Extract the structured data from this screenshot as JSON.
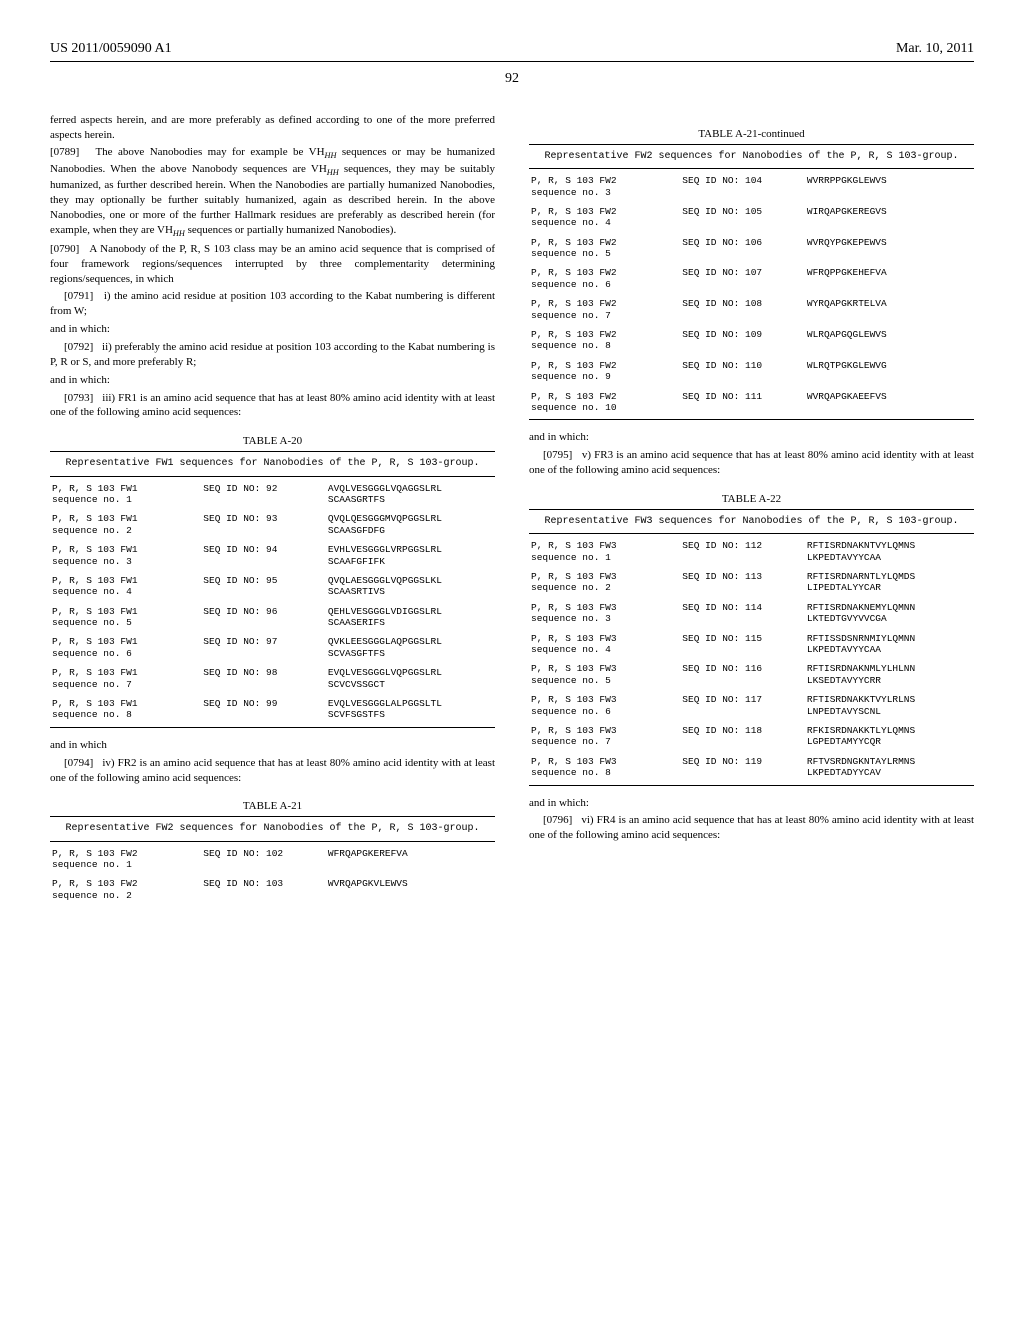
{
  "header": {
    "docnum": "US 2011/0059090 A1",
    "date": "Mar. 10, 2011"
  },
  "pagenum": "92",
  "left": {
    "p0": "ferred aspects herein, and are more preferably as defined according to one of the more preferred aspects herein.",
    "p0789_id": "[0789]",
    "p0789": "The above Nanobodies may for example be V",
    "p0789b": " sequences or may be humanized Nanobodies. When the above Nanobody sequences are V",
    "p0789c": " sequences, they may be suitably humanized, as further described herein. When the Nanobodies are partially humanized Nanobodies, they may optionally be further suitably humanized, again as described herein. In the above Nanobodies, one or more of the further Hallmark residues are preferably as described herein (for example, when they are V",
    "p0789d": " sequences or partially humanized Nanobodies).",
    "p0790_id": "[0790]",
    "p0790": "A Nanobody of the P, R, S 103 class may be an amino acid sequence that is comprised of four framework regions/sequences interrupted by three complementarity determining regions/sequences, in which",
    "p0791_id": "[0791]",
    "p0791": "i) the amino acid residue at position 103 according to the Kabat numbering is different from W;",
    "andwhich1": "and in which:",
    "p0792_id": "[0792]",
    "p0792": "ii) preferably the amino acid residue at position 103 according to the Kabat numbering is P, R or S, and more preferably R;",
    "andwhich2": "and in which:",
    "p0793_id": "[0793]",
    "p0793": "iii) FR1 is an amino acid sequence that has at least 80% amino acid identity with at least one of the following amino acid sequences:",
    "tA20_caption": "TABLE A-20",
    "tA20_sub": "Representative FW1 sequences for Nanobodies of the P, R, S 103-group.",
    "tA20_rows": [
      {
        "n1": "P, R, S 103 FW1",
        "n2": "sequence no. 1",
        "s": "SEQ ID NO: 92",
        "v1": "AVQLVESGGGLVQAGGSLRL",
        "v2": "SCAASGRTFS"
      },
      {
        "n1": "P, R, S 103 FW1",
        "n2": "sequence no. 2",
        "s": "SEQ ID NO: 93",
        "v1": "QVQLQESGGGMVQPGGSLRL",
        "v2": "SCAASGFDFG"
      },
      {
        "n1": "P, R, S 103 FW1",
        "n2": "sequence no. 3",
        "s": "SEQ ID NO: 94",
        "v1": "EVHLVESGGGLVRPGGSLRL",
        "v2": "SCAAFGFIFK"
      },
      {
        "n1": "P, R, S 103 FW1",
        "n2": "sequence no. 4",
        "s": "SEQ ID NO: 95",
        "v1": "QVQLAESGGGLVQPGGSLKL",
        "v2": "SCAASRTIVS"
      },
      {
        "n1": "P, R, S 103 FW1",
        "n2": "sequence no. 5",
        "s": "SEQ ID NO: 96",
        "v1": "QEHLVESGGGLVDIGGSLRL",
        "v2": "SCAASERIFS"
      },
      {
        "n1": "P, R, S 103 FW1",
        "n2": "sequence no. 6",
        "s": "SEQ ID NO: 97",
        "v1": "QVKLEESGGGLAQPGGSLRL",
        "v2": "SCVASGFTFS"
      },
      {
        "n1": "P, R, S 103 FW1",
        "n2": "sequence no. 7",
        "s": "SEQ ID NO: 98",
        "v1": "EVQLVESGGGLVQPGGSLRL",
        "v2": "SCVCVSSGCT"
      },
      {
        "n1": "P, R, S 103 FW1",
        "n2": "sequence no. 8",
        "s": "SEQ ID NO: 99",
        "v1": "EVQLVESGGGLALPGGSLTL",
        "v2": "SCVFSGSTFS"
      }
    ],
    "andwhich3": "and in which",
    "p0794_id": "[0794]",
    "p0794": "iv) FR2 is an amino acid sequence that has at least 80% amino acid identity with at least one of the following amino acid sequences:",
    "tA21_caption": "TABLE A-21",
    "tA21_sub": "Representative FW2 sequences for Nanobodies of the P, R, S 103-group.",
    "tA21_rows": [
      {
        "n1": "P, R, S 103 FW2",
        "n2": "sequence no. 1",
        "s": "SEQ ID NO: 102",
        "v1": "WFRQAPGKEREFVA",
        "v2": ""
      },
      {
        "n1": "P, R, S 103 FW2",
        "n2": "sequence no. 2",
        "s": "SEQ ID NO: 103",
        "v1": "WVRQAPGKVLEWVS",
        "v2": ""
      }
    ]
  },
  "right": {
    "tA21c_caption": "TABLE A-21-continued",
    "tA21c_sub": "Representative FW2 sequences for Nanobodies of the P, R, S 103-group.",
    "tA21c_rows": [
      {
        "n1": "P, R, S 103 FW2",
        "n2": "sequence no. 3",
        "s": "SEQ ID NO: 104",
        "v1": "WVRRPPGKGLEWVS",
        "v2": ""
      },
      {
        "n1": "P, R, S 103 FW2",
        "n2": "sequence no. 4",
        "s": "SEQ ID NO: 105",
        "v1": "WIRQAPGKEREGVS",
        "v2": ""
      },
      {
        "n1": "P, R, S 103 FW2",
        "n2": "sequence no. 5",
        "s": "SEQ ID NO: 106",
        "v1": "WVRQYPGKEPEWVS",
        "v2": ""
      },
      {
        "n1": "P, R, S 103 FW2",
        "n2": "sequence no. 6",
        "s": "SEQ ID NO: 107",
        "v1": "WFRQPPGKEHEFVA",
        "v2": ""
      },
      {
        "n1": "P, R, S 103 FW2",
        "n2": "sequence no. 7",
        "s": "SEQ ID NO: 108",
        "v1": "WYRQAPGKRTELVA",
        "v2": ""
      },
      {
        "n1": "P, R, S 103 FW2",
        "n2": "sequence no. 8",
        "s": "SEQ ID NO: 109",
        "v1": "WLRQAPGQGLEWVS",
        "v2": ""
      },
      {
        "n1": "P, R, S 103 FW2",
        "n2": "sequence no. 9",
        "s": "SEQ ID NO: 110",
        "v1": "WLRQTPGKGLEWVG",
        "v2": ""
      },
      {
        "n1": "P, R, S 103 FW2",
        "n2": "sequence no. 10",
        "s": "SEQ ID NO: 111",
        "v1": "WVRQAPGKAEEFVS",
        "v2": ""
      }
    ],
    "andwhich4": "and in which:",
    "p0795_id": "[0795]",
    "p0795": "v) FR3 is an amino acid sequence that has at least 80% amino acid identity with at least one of the following amino acid sequences:",
    "tA22_caption": "TABLE A-22",
    "tA22_sub": "Representative FW3 sequences for Nanobodies of the P, R, S 103-group.",
    "tA22_rows": [
      {
        "n1": "P, R, S 103 FW3",
        "n2": "sequence no. 1",
        "s": "SEQ ID NO: 112",
        "v1": "RFTISRDNAKNTVYLQMNS",
        "v2": "LKPEDTAVYYCAA"
      },
      {
        "n1": "P, R, S 103 FW3",
        "n2": "sequence no. 2",
        "s": "SEQ ID NO: 113",
        "v1": "RFTISRDNARNTLYLQMDS",
        "v2": "LIPEDTALYYCAR"
      },
      {
        "n1": "P, R, S 103 FW3",
        "n2": "sequence no. 3",
        "s": "SEQ ID NO: 114",
        "v1": "RFTISRDNAKNEMYLQMNN",
        "v2": "LKTEDTGVYVVCGA"
      },
      {
        "n1": "P, R, S 103 FW3",
        "n2": "sequence no. 4",
        "s": "SEQ ID NO: 115",
        "v1": "RFTISSDSNRNMIYLQMNN",
        "v2": "LKPEDTAVYYCAA"
      },
      {
        "n1": "P, R, S 103 FW3",
        "n2": "sequence no. 5",
        "s": "SEQ ID NO: 116",
        "v1": "RFTISRDNAKNMLYLHLNN",
        "v2": "LKSEDTAVYYCRR"
      },
      {
        "n1": "P, R, S 103 FW3",
        "n2": "sequence no. 6",
        "s": "SEQ ID NO: 117",
        "v1": "RFTISRDNAKKTVYLRLNS",
        "v2": "LNPEDTAVYSCNL"
      },
      {
        "n1": "P, R, S 103 FW3",
        "n2": "sequence no. 7",
        "s": "SEQ ID NO: 118",
        "v1": "RFKISRDNAKKTLYLQMNS",
        "v2": "LGPEDTAMYYCQR"
      },
      {
        "n1": "P, R, S 103 FW3",
        "n2": "sequence no. 8",
        "s": "SEQ ID NO: 119",
        "v1": "RFTVSRDNGKNTAYLRMNS",
        "v2": "LKPEDTADYYCAV"
      }
    ],
    "andwhich5": "and in which:",
    "p0796_id": "[0796]",
    "p0796": "vi) FR4 is an amino acid sequence that has at least 80% amino acid identity with at least one of the following amino acid sequences:"
  }
}
